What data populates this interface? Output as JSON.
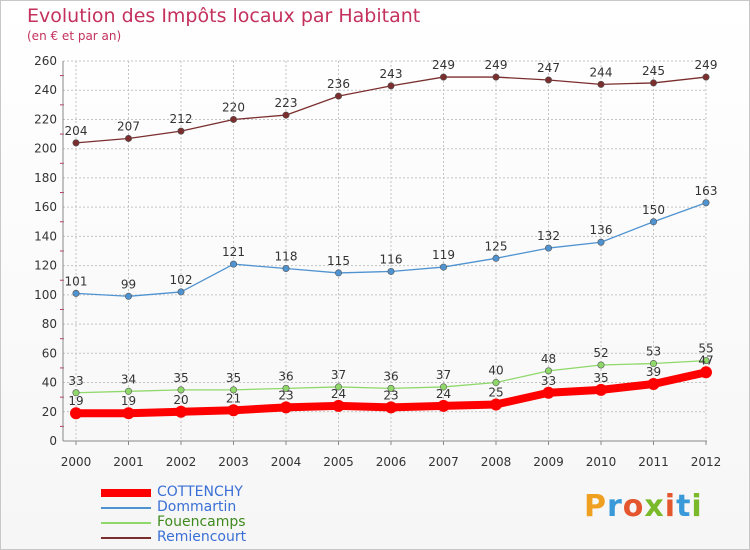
{
  "title": "Evolution des Impôts locaux par Habitant",
  "subtitle": "(en € et par an)",
  "logo": {
    "text": "Proxiti",
    "colors": [
      "#f0a020",
      "#3a9ad9",
      "#e4572e",
      "#7ab929",
      "#e4572e",
      "#3a9ad9",
      "#7ab929"
    ]
  },
  "chart_data": {
    "type": "line",
    "x": [
      2000,
      2001,
      2002,
      2003,
      2004,
      2005,
      2006,
      2007,
      2008,
      2009,
      2010,
      2011,
      2012
    ],
    "ylim": [
      0,
      260
    ],
    "yticks": [
      0,
      20,
      40,
      60,
      80,
      100,
      120,
      140,
      160,
      180,
      200,
      220,
      240,
      260
    ],
    "grid": true,
    "legend": "bottom-left",
    "series": [
      {
        "name": "COTTENCHY",
        "color": "#ff0000",
        "values": [
          19,
          19,
          20,
          21,
          23,
          24,
          23,
          24,
          25,
          33,
          35,
          39,
          47
        ]
      },
      {
        "name": "Dommartin",
        "color": "#4f93d1",
        "values": [
          101,
          99,
          102,
          121,
          118,
          115,
          116,
          119,
          125,
          132,
          136,
          150,
          163
        ]
      },
      {
        "name": "Fouencamps",
        "color": "#8fd86a",
        "values": [
          33,
          34,
          35,
          35,
          36,
          37,
          36,
          37,
          40,
          48,
          52,
          53,
          55
        ]
      },
      {
        "name": "Remiencourt",
        "color": "#7b2e2e",
        "values": [
          204,
          207,
          212,
          220,
          223,
          236,
          243,
          249,
          249,
          247,
          244,
          245,
          249
        ]
      }
    ]
  }
}
